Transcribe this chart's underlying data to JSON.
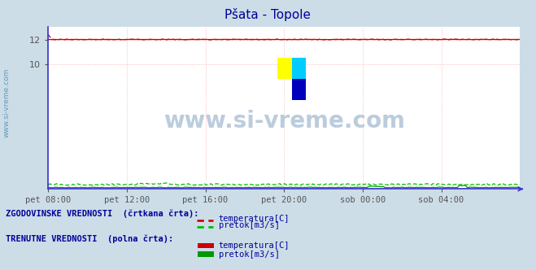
{
  "title": "Pšata - Topole",
  "title_color": "#000099",
  "bg_color": "#ccdde8",
  "plot_bg_color": "#ffffff",
  "axis_color": "#3333cc",
  "grid_color": "#ffaaaa",
  "watermark_text": "www.si-vreme.com",
  "watermark_color": "#bbccdd",
  "side_label": "www.si-vreme.com",
  "x_tick_labels": [
    "pet 08:00",
    "pet 12:00",
    "pet 16:00",
    "pet 20:00",
    "sob 00:00",
    "sob 04:00"
  ],
  "x_tick_positions": [
    0.0,
    0.1666,
    0.3333,
    0.5,
    0.6666,
    0.8333
  ],
  "ylim": [
    0,
    13
  ],
  "yticks": [
    10,
    12
  ],
  "temp_hist_value": 12.0,
  "temp_curr_value": 12.0,
  "flow_hist_value": 0.35,
  "flow_curr_value": 0.12,
  "red_dashed_color": "#dd0000",
  "red_solid_color": "#cc0000",
  "green_dashed_color": "#00bb00",
  "green_solid_color": "#009900",
  "legend_title1": "ZGODOVINSKE VREDNOSTI  (črtkana črta):",
  "legend_title2": "TRENUTNE VREDNOSTI  (polna črta):",
  "legend_color": "#000099",
  "legend_label_temp": "temperatura[C]",
  "legend_label_flow": "pretok[m3/s]",
  "n_points": 288
}
